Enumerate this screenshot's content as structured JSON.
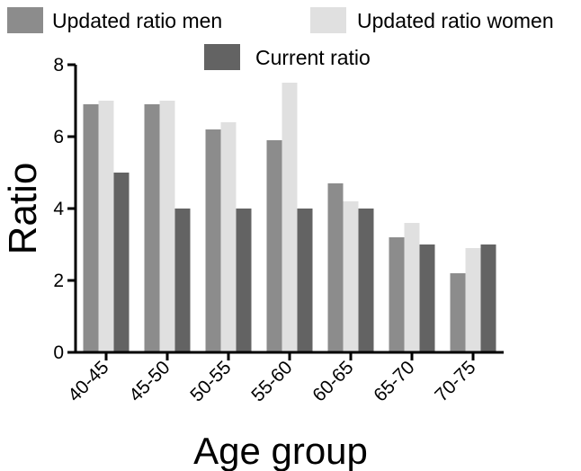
{
  "chart_data": {
    "type": "bar",
    "title": "",
    "xlabel": "Age group",
    "ylabel": "Ratio",
    "categories": [
      "40-45",
      "45-50",
      "50-55",
      "55-60",
      "60-65",
      "65-70",
      "70-75"
    ],
    "series": [
      {
        "name": "Updated ratio men",
        "color": "#8c8c8c",
        "values": [
          6.9,
          6.9,
          6.2,
          5.9,
          4.7,
          3.2,
          2.2
        ]
      },
      {
        "name": "Updated ratio women",
        "color": "#e0e0e0",
        "values": [
          7.0,
          7.0,
          6.4,
          7.5,
          4.2,
          3.6,
          2.9
        ]
      },
      {
        "name": "Current ratio",
        "color": "#636363",
        "values": [
          5.0,
          4.0,
          4.0,
          4.0,
          4.0,
          3.0,
          3.0
        ]
      }
    ],
    "ylim": [
      0,
      8
    ],
    "yticks": [
      "0",
      "2",
      "4",
      "6",
      "8"
    ],
    "grid": false,
    "legend_position": "top"
  }
}
